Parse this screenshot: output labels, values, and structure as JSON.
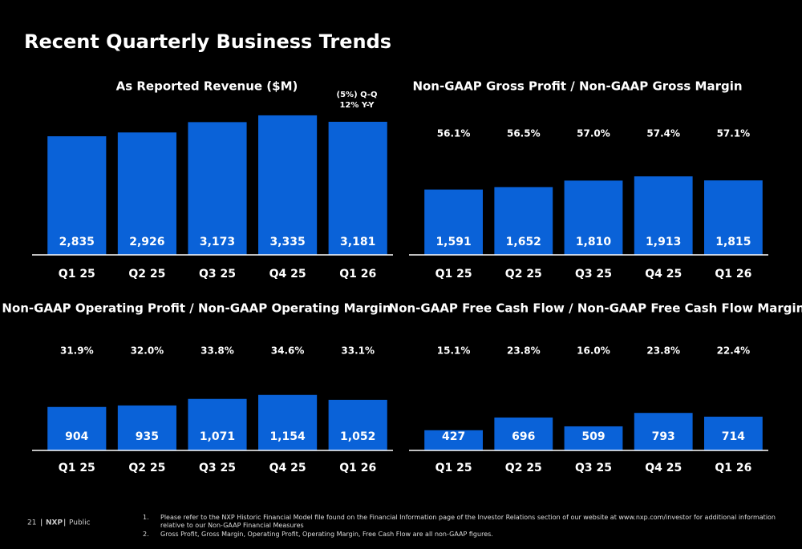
{
  "title": "Recent Quarterly Business Trends",
  "chart_data": [
    {
      "type": "bar",
      "title": "As Reported Revenue ($M)",
      "categories": [
        "Q1 25",
        "Q2 25",
        "Q3 25",
        "Q4 25",
        "Q1 26"
      ],
      "values": [
        2835,
        2926,
        3173,
        3335,
        3181
      ],
      "value_labels": [
        "2,835",
        "2,926",
        "3,173",
        "3,335",
        "3,181"
      ],
      "color": "#0a62d8",
      "annotations": [
        "(5%) Q-Q",
        "12% Y-Y"
      ]
    },
    {
      "type": "bar",
      "title": "Non-GAAP Gross Profit / Non-GAAP Gross Margin",
      "categories": [
        "Q1 25",
        "Q2 25",
        "Q3 25",
        "Q4 25",
        "Q1 26"
      ],
      "values": [
        1591,
        1652,
        1810,
        1913,
        1815
      ],
      "value_labels": [
        "1,591",
        "1,652",
        "1,810",
        "1,913",
        "1,815"
      ],
      "color": "#0a62d8",
      "margin_labels": [
        "56.1%",
        "56.5%",
        "57.0%",
        "57.4%",
        "57.1%"
      ]
    },
    {
      "type": "bar",
      "title": "Non-GAAP Operating Profit / Non-GAAP Operating Margin",
      "categories": [
        "Q1 25",
        "Q2 25",
        "Q3 25",
        "Q4 25",
        "Q1 26"
      ],
      "values": [
        904,
        935,
        1071,
        1154,
        1052
      ],
      "value_labels": [
        "904",
        "935",
        "1,071",
        "1,154",
        "1,052"
      ],
      "color": "#0a62d8",
      "margin_labels": [
        "31.9%",
        "32.0%",
        "33.8%",
        "34.6%",
        "33.1%"
      ]
    },
    {
      "type": "bar",
      "title": "Non-GAAP Free Cash Flow / Non-GAAP Free Cash Flow Margin",
      "categories": [
        "Q1 25",
        "Q2 25",
        "Q3 25",
        "Q4 25",
        "Q1 26"
      ],
      "values": [
        427,
        696,
        509,
        793,
        714
      ],
      "value_labels": [
        "427",
        "696",
        "509",
        "793",
        "714"
      ],
      "color": "#0a62d8",
      "margin_labels": [
        "15.1%",
        "23.8%",
        "16.0%",
        "23.8%",
        "22.4%"
      ]
    }
  ],
  "footer": {
    "page": "21",
    "brand": "NXP",
    "classification": "Public"
  },
  "footnotes": [
    {
      "number": "1.",
      "text": "Please refer to the NXP Historic Financial Model file found on the Financial Information page of the Investor Relations section of our website at www.nxp.com/investor for additional information relative to our Non-GAAP Financial Measures"
    },
    {
      "number": "2.",
      "text": "Gross Profit, Gross Margin, Operating Profit, Operating Margin, Free Cash Flow are all non-GAAP figures."
    }
  ]
}
